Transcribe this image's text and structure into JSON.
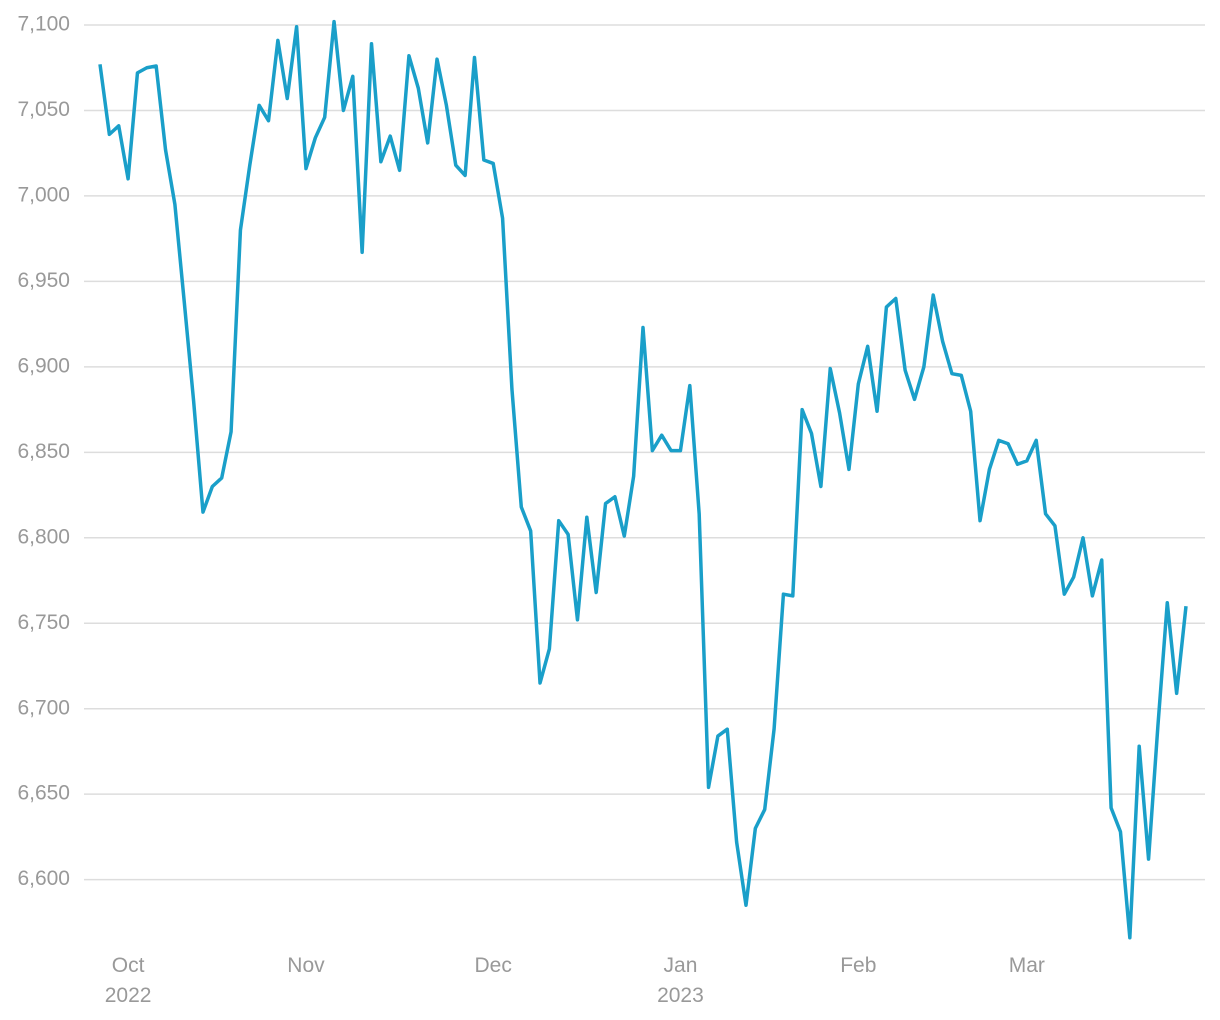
{
  "chart_data": {
    "type": "line",
    "categories": [
      null,
      null,
      null,
      "Oct 2022",
      null,
      null,
      null,
      null,
      null,
      null,
      null,
      null,
      null,
      null,
      null,
      null,
      null,
      null,
      null,
      null,
      null,
      null,
      "Nov",
      null,
      null,
      null,
      null,
      null,
      null,
      null,
      null,
      null,
      null,
      null,
      null,
      null,
      null,
      null,
      null,
      null,
      null,
      null,
      "Dec",
      null,
      null,
      null,
      null,
      null,
      null,
      null,
      null,
      null,
      null,
      null,
      null,
      null,
      null,
      null,
      null,
      null,
      null,
      null,
      "Jan 2023",
      null,
      null,
      null,
      null,
      null,
      null,
      null,
      null,
      null,
      null,
      null,
      null,
      null,
      null,
      null,
      null,
      null,
      null,
      "Feb",
      null,
      null,
      null,
      null,
      null,
      null,
      null,
      null,
      null,
      null,
      null,
      null,
      null,
      null,
      null,
      null,
      null,
      "Mar",
      null,
      null,
      null,
      null,
      null,
      null,
      null,
      null,
      null,
      null,
      null,
      null,
      null,
      null,
      null,
      null,
      null
    ],
    "series": [
      {
        "color": "#1a9fc9",
        "values": [
          7077,
          7036,
          7041,
          7010,
          7072,
          7075,
          7076,
          7027,
          6995,
          6938,
          6880,
          6815,
          6830,
          6835,
          6862,
          6980,
          7018,
          7053,
          7044,
          7091,
          7057,
          7099,
          7016,
          7034,
          7046,
          7102,
          7050,
          7070,
          6967,
          7089,
          7020,
          7035,
          7015,
          7082,
          7063,
          7031,
          7080,
          7053,
          7018,
          7012,
          7081,
          7021,
          7019,
          6987,
          6887,
          6818,
          6804,
          6715,
          6735,
          6810,
          6802,
          6752,
          6812,
          6768,
          6820,
          6824,
          6801,
          6836,
          6923,
          6851,
          6860,
          6851,
          6851,
          6889,
          6814,
          6654,
          6684,
          6688,
          6622,
          6585,
          6630,
          6641,
          6688,
          6767,
          6766,
          6875,
          6861,
          6830,
          6899,
          6873,
          6840,
          6890,
          6912,
          6874,
          6935,
          6940,
          6898,
          6881,
          6900,
          6942,
          6915,
          6896,
          6895,
          6874,
          6810,
          6840,
          6857,
          6855,
          6843,
          6845,
          6857,
          6814,
          6807,
          6767,
          6777,
          6800,
          6766,
          6787,
          6642,
          6628,
          6566,
          6678,
          6612,
          6690,
          6762,
          6709,
          6760
        ]
      }
    ],
    "ylim": [
      6560,
      7100
    ],
    "yticks": [
      {
        "value": 6600,
        "label": "6,600"
      },
      {
        "value": 6650,
        "label": "6,650"
      },
      {
        "value": 6700,
        "label": "6,700"
      },
      {
        "value": 6750,
        "label": "6,750"
      },
      {
        "value": 6800,
        "label": "6,800"
      },
      {
        "value": 6850,
        "label": "6,850"
      },
      {
        "value": 6900,
        "label": "6,900"
      },
      {
        "value": 6950,
        "label": "6,950"
      },
      {
        "value": 7000,
        "label": "7,000"
      },
      {
        "value": 7050,
        "label": "7,050"
      },
      {
        "value": 7100,
        "label": "7,100"
      }
    ],
    "grid": true
  }
}
